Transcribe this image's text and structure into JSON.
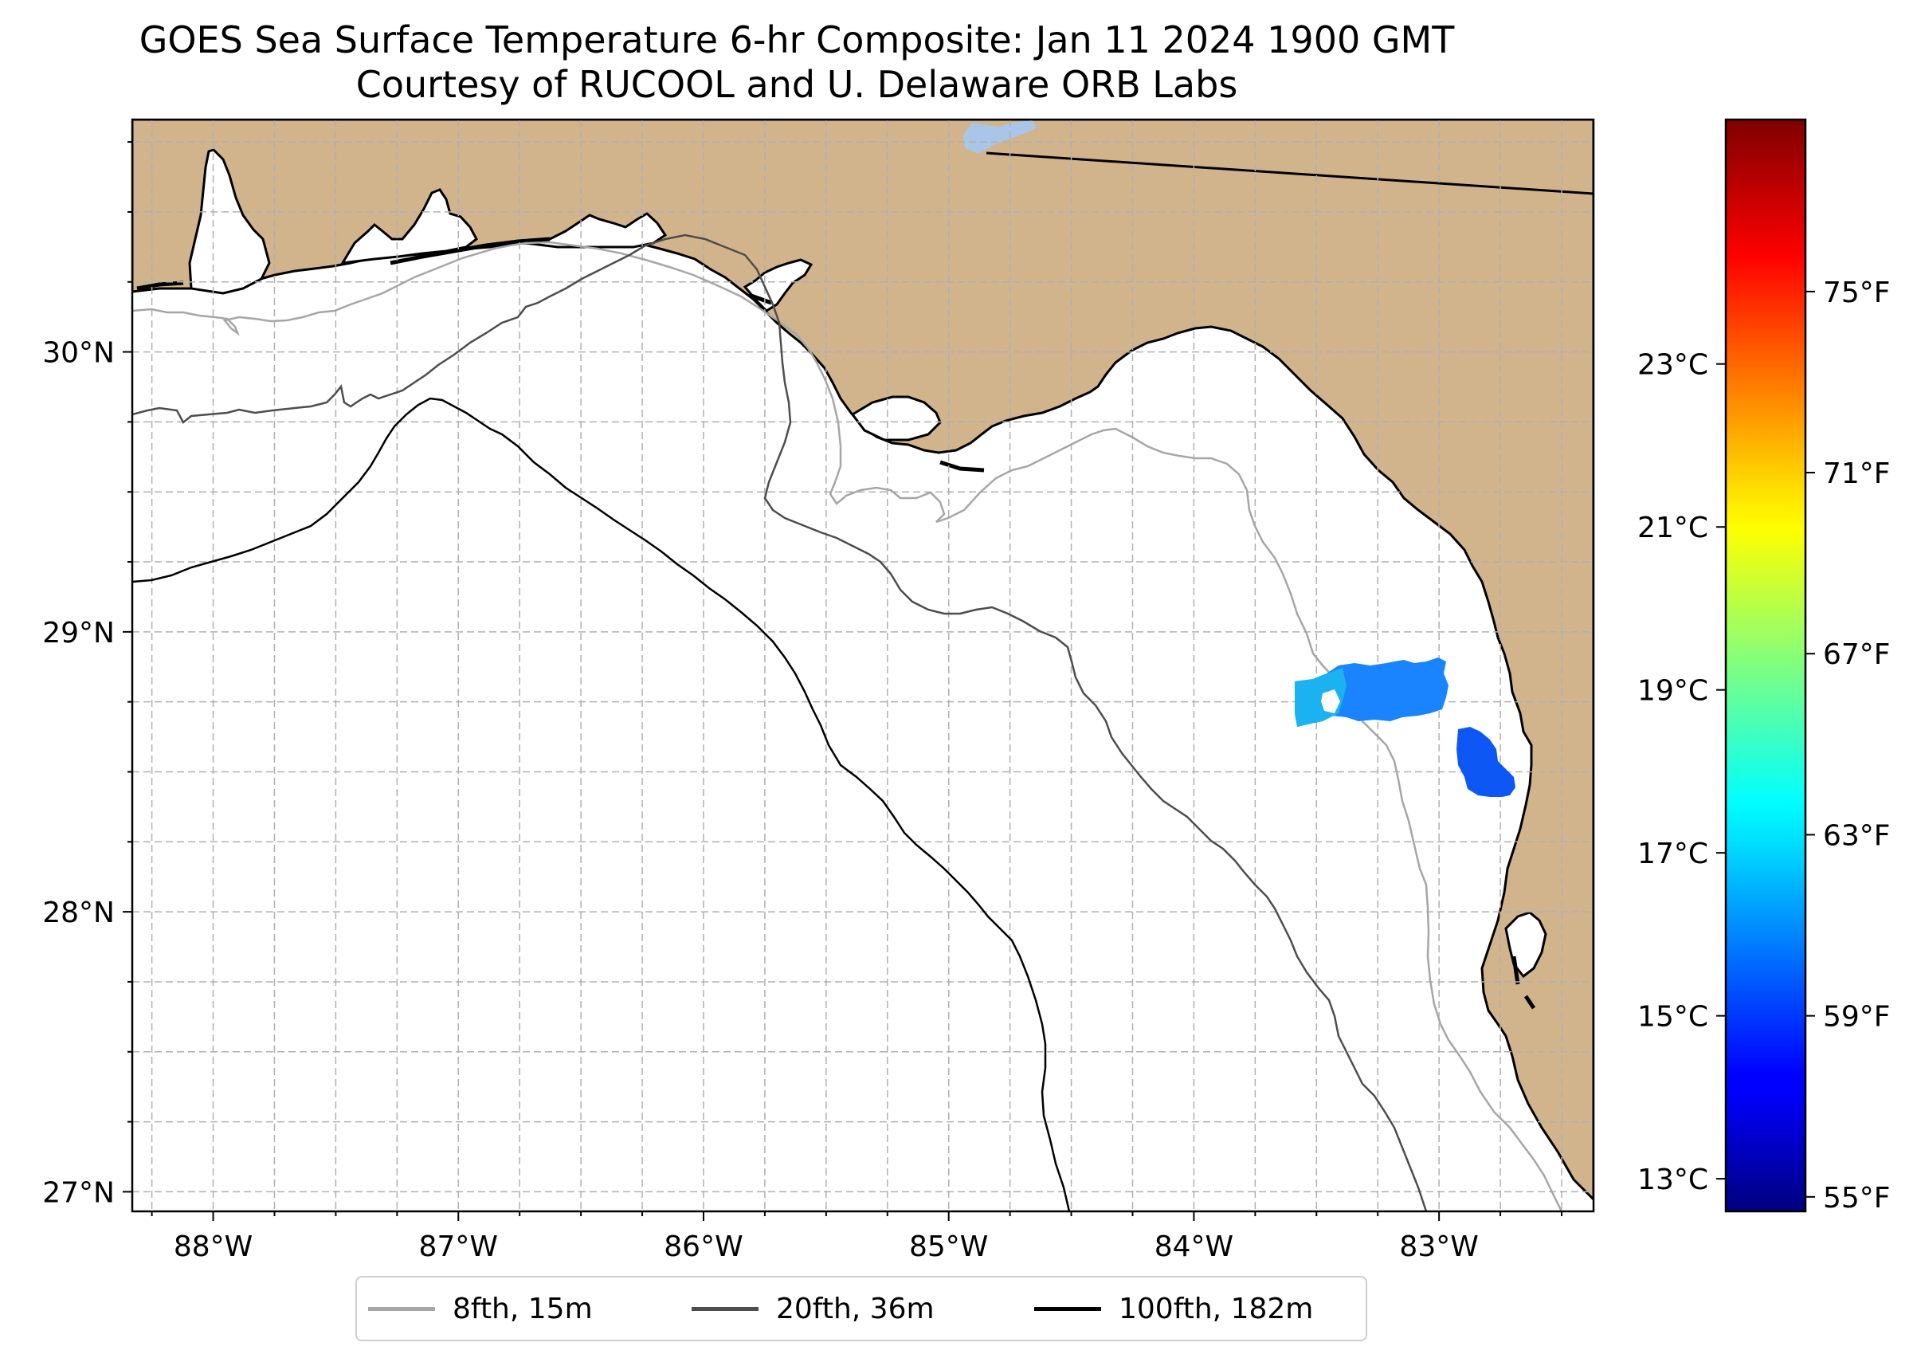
{
  "title": {
    "line1": "GOES Sea Surface Temperature 6-hr Composite: Jan 11 2024 1900 GMT",
    "line2": "Courtesy of RUCOOL and U. Delaware ORB Labs"
  },
  "map": {
    "lon_range": [
      -88.33,
      -82.37
    ],
    "lat_range": [
      26.93,
      30.83
    ],
    "lat_ticks": [
      {
        "value": 30,
        "label": "30°N"
      },
      {
        "value": 29,
        "label": "29°N"
      },
      {
        "value": 28,
        "label": "28°N"
      },
      {
        "value": 27,
        "label": "27°N"
      }
    ],
    "lon_ticks": [
      {
        "value": -88,
        "label": "88°W"
      },
      {
        "value": -87,
        "label": "87°W"
      },
      {
        "value": -86,
        "label": "86°W"
      },
      {
        "value": -85,
        "label": "85°W"
      },
      {
        "value": -84,
        "label": "84°W"
      },
      {
        "value": -83,
        "label": "83°W"
      }
    ],
    "gridlines": "dashed, every 0.25°",
    "colors": {
      "land": "#d2b48c",
      "ocean": "#ffffff",
      "lake": "#a9c6e8"
    }
  },
  "legend": {
    "items": [
      {
        "label": "8fth, 15m",
        "color": "#a6a6a6"
      },
      {
        "label": "20fth, 36m",
        "color": "#4d4d4d"
      },
      {
        "label": "100fth, 182m",
        "color": "#000000"
      }
    ]
  },
  "colorbar": {
    "colormap": "jet",
    "range_c": [
      12.6,
      26.0
    ],
    "celsius_ticks": [
      {
        "value": 13,
        "label": "13°C"
      },
      {
        "value": 15,
        "label": "15°C"
      },
      {
        "value": 17,
        "label": "17°C"
      },
      {
        "value": 19,
        "label": "19°C"
      },
      {
        "value": 21,
        "label": "21°C"
      },
      {
        "value": 23,
        "label": "23°C"
      }
    ],
    "fahrenheit_ticks": [
      {
        "value": 55,
        "label": "55°F"
      },
      {
        "value": 59,
        "label": "59°F"
      },
      {
        "value": 63,
        "label": "63°F"
      },
      {
        "value": 67,
        "label": "67°F"
      },
      {
        "value": 71,
        "label": "71°F"
      },
      {
        "value": 75,
        "label": "75°F"
      }
    ]
  },
  "sst_patches": [
    {
      "name": "offshore-patch",
      "approx_temp_c": 15.6
    },
    {
      "name": "nearshore-patch",
      "approx_temp_c": 15.0
    }
  ]
}
